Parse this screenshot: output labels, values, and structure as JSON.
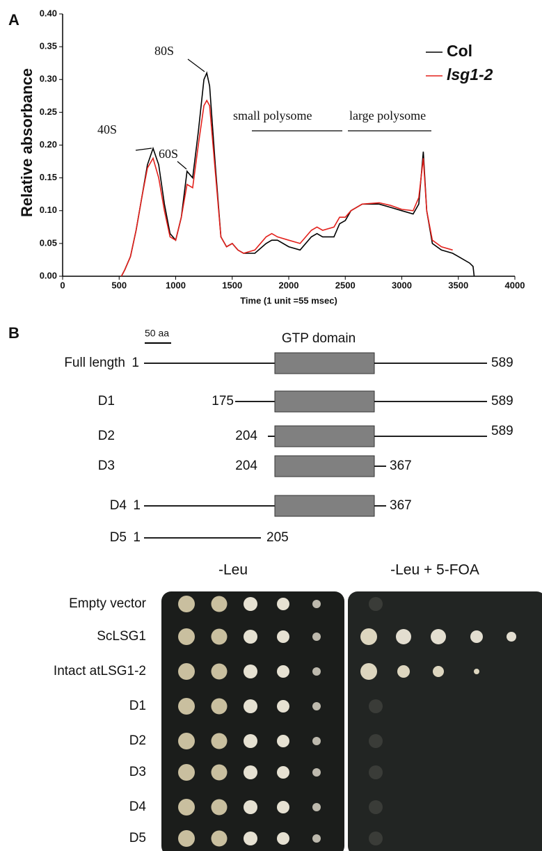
{
  "chart_data": {
    "type": "line",
    "panel_label": "A",
    "y_label": "Relative absorbance",
    "x_label": "Time (1 unit =55 msec)",
    "xlim": [
      0,
      4000
    ],
    "xticks": [
      0,
      500,
      1000,
      1500,
      2000,
      2500,
      3000,
      3500,
      4000
    ],
    "ylim": [
      0,
      0.4
    ],
    "yticks": [
      {
        "value": 0,
        "label": "0.00"
      },
      0.05,
      {
        "value": 0.1,
        "label": "0.10"
      },
      0.15,
      {
        "value": 0.2,
        "label": "0.20"
      },
      0.25,
      {
        "value": 0.3,
        "label": "0.30"
      },
      0.35,
      {
        "value": 0.4,
        "label": "0.40"
      }
    ],
    "legend": "upper right",
    "annotations": [
      "40S",
      "60S",
      "80S",
      "small polysome",
      "large polysome"
    ],
    "x": [
      520,
      550,
      600,
      650,
      700,
      750,
      800,
      850,
      900,
      950,
      1000,
      1050,
      1100,
      1150,
      1200,
      1250,
      1275,
      1300,
      1350,
      1400,
      1450,
      1500,
      1550,
      1600,
      1700,
      1800,
      1850,
      1900,
      2000,
      2100,
      2200,
      2250,
      2300,
      2400,
      2450,
      2500,
      2550,
      2650,
      2800,
      2900,
      3000,
      3100,
      3150,
      3190,
      3220,
      3270,
      3350,
      3450,
      3500,
      3600,
      3630,
      3640
    ],
    "series": [
      {
        "name": "Col",
        "color": "#000000",
        "values": [
          0,
          0.01,
          0.03,
          0.07,
          0.12,
          0.17,
          0.195,
          0.17,
          0.11,
          0.065,
          0.055,
          0.09,
          0.16,
          0.15,
          0.22,
          0.3,
          0.31,
          0.29,
          0.17,
          0.06,
          0.045,
          0.05,
          0.04,
          0.035,
          0.035,
          0.05,
          0.055,
          0.055,
          0.045,
          0.04,
          0.06,
          0.065,
          0.06,
          0.06,
          0.08,
          0.085,
          0.1,
          0.11,
          0.11,
          0.105,
          0.1,
          0.095,
          0.11,
          0.19,
          0.1,
          0.05,
          0.04,
          0.035,
          0.03,
          0.02,
          0.015,
          0
        ]
      },
      {
        "name": "lsg1-2",
        "color": "#e3201b",
        "values": [
          0,
          0.01,
          0.03,
          0.07,
          0.12,
          0.165,
          0.18,
          0.15,
          0.1,
          0.06,
          0.055,
          0.09,
          0.14,
          0.135,
          0.2,
          0.26,
          0.268,
          0.26,
          0.16,
          0.06,
          0.045,
          0.05,
          0.04,
          0.035,
          0.04,
          0.06,
          0.065,
          0.06,
          0.055,
          0.05,
          0.07,
          0.075,
          0.07,
          0.075,
          0.09,
          0.09,
          0.1,
          0.11,
          0.112,
          0.108,
          0.102,
          0.1,
          0.12,
          0.18,
          0.1,
          0.055,
          0.045,
          0.04,
          null,
          null,
          null,
          null
        ]
      }
    ]
  },
  "panel_b": {
    "label": "B",
    "scale_bar": "50 aa",
    "domain_label": "GTP domain",
    "constructs": [
      {
        "name": "Full length",
        "start": 1,
        "end": 589
      },
      {
        "name": "D1",
        "start": 175,
        "end": 589
      },
      {
        "name": "D2",
        "start": 204,
        "end": 589
      },
      {
        "name": "D3",
        "start": 204,
        "end": 367
      },
      {
        "name": "D4",
        "start": 1,
        "end": 367
      },
      {
        "name": "D5",
        "start": 1,
        "end": 205
      }
    ],
    "media": [
      "-Leu",
      "-Leu + 5-FOA"
    ],
    "strains": [
      "Empty vector",
      "ScLSG1",
      "Intact atLSG1-2",
      "D1",
      "D2",
      "D3",
      "D4",
      "D5"
    ]
  }
}
